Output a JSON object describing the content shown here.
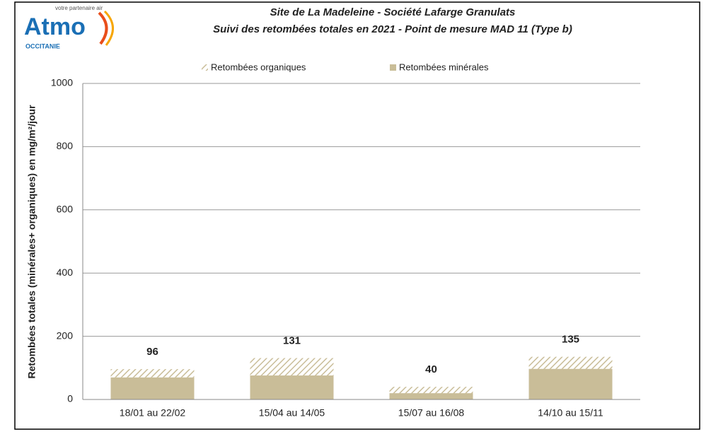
{
  "logo": {
    "brand": "Atmo",
    "tagline": "votre partenaire air",
    "region": "OCCITANIE"
  },
  "chart_data": {
    "type": "stacked_bar",
    "title": "Site de La Madeleine - Société Lafarge Granulats",
    "subtitle": "Suivi des retombées totales en 2021 - Point de mesure MAD 11 (Type b)",
    "y_label": "Retombées totales (minérales+ organiques) en mg/m²/jour",
    "categories": [
      "18/01 au 22/02",
      "15/04 au 14/05",
      "15/07 au 16/08",
      "14/10 au 15/11"
    ],
    "series": [
      {
        "name": "Retombées minérales",
        "color": "#c9bd98",
        "pattern": "solid",
        "values": [
          70,
          76,
          20,
          97
        ]
      },
      {
        "name": "Retombées organiques",
        "color": "#c9bd98",
        "pattern": "hatch",
        "values": [
          26,
          55,
          20,
          38
        ]
      }
    ],
    "totals": [
      96,
      131,
      40,
      135
    ],
    "legend_order": [
      1,
      0
    ],
    "ylim": [
      0,
      1000
    ],
    "yticks": [
      0,
      200,
      400,
      600,
      800,
      1000
    ],
    "grid": true
  }
}
